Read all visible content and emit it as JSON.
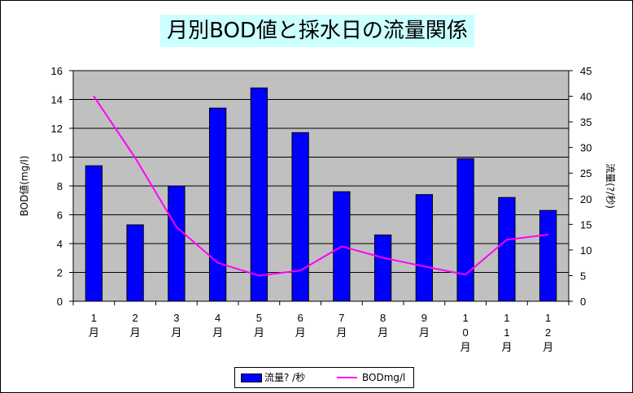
{
  "chart_data": {
    "type": "bar",
    "title": "月別BOD値と採水日の流量関係",
    "categories": [
      "1\n月",
      "2\n月",
      "3\n月",
      "4\n月",
      "5\n月",
      "6\n月",
      "7\n月",
      "8\n月",
      "9\n月",
      "1\n0\n月",
      "1\n1\n月",
      "1\n2\n月"
    ],
    "ylabel_left": "BOD値(mg/l)",
    "ylabel_right": "流量(?/秒)",
    "ylim_left": [
      0,
      16
    ],
    "ylim_right": [
      0,
      45
    ],
    "yticks_left": [
      "0",
      "2",
      "4",
      "6",
      "8",
      "10",
      "12",
      "14",
      "16"
    ],
    "yticks_right": [
      "0",
      "5",
      "10",
      "15",
      "20",
      "25",
      "30",
      "35",
      "40",
      "45"
    ],
    "grid": true,
    "plot_background": "#c0c0c0",
    "legend_position": "bottom",
    "series": [
      {
        "name": "流量?  /秒",
        "type": "bar",
        "axis": "left",
        "color": "#0000ff",
        "values": [
          9.4,
          5.3,
          8.0,
          13.4,
          14.8,
          11.7,
          7.6,
          4.6,
          7.4,
          9.9,
          7.2,
          6.3
        ]
      },
      {
        "name": "BODmg/l",
        "type": "line",
        "axis": "right",
        "color": "#ff00ff",
        "values": [
          40,
          28,
          14.5,
          7.5,
          5,
          6,
          10.7,
          8.5,
          6.8,
          5.2,
          12,
          13
        ]
      }
    ]
  }
}
